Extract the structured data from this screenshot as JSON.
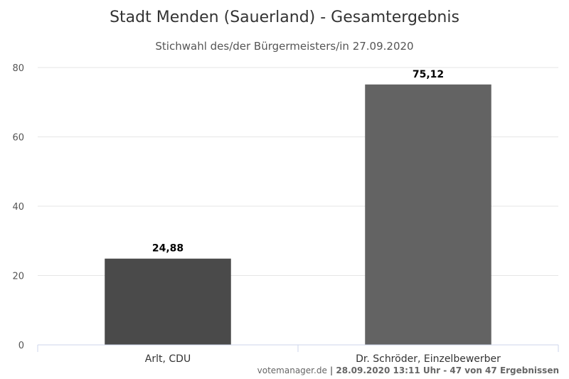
{
  "chart_data": {
    "type": "bar",
    "title": "Stadt Menden (Sauerland) - Gesamtergebnis",
    "subtitle": "Stichwahl des/der Bürgermeisters/in 27.09.2020",
    "categories": [
      "Arlt, CDU",
      "Dr. Schröder, Einzelbewerber"
    ],
    "values": [
      24.88,
      75.12
    ],
    "value_labels": [
      "24,88",
      "75,12"
    ],
    "colors": [
      "#4a4a4a",
      "#636363"
    ],
    "ylim": [
      0,
      80
    ],
    "yticks": [
      "0",
      "20",
      "40",
      "60",
      "80"
    ],
    "ytick_values": [
      0,
      20,
      40,
      60,
      80
    ],
    "grid": true,
    "xlabel": "",
    "ylabel": ""
  },
  "credit": {
    "source": "votemanager.de",
    "details": "| 28.09.2020 13:11 Uhr - 47 von 47 Ergebnissen"
  }
}
